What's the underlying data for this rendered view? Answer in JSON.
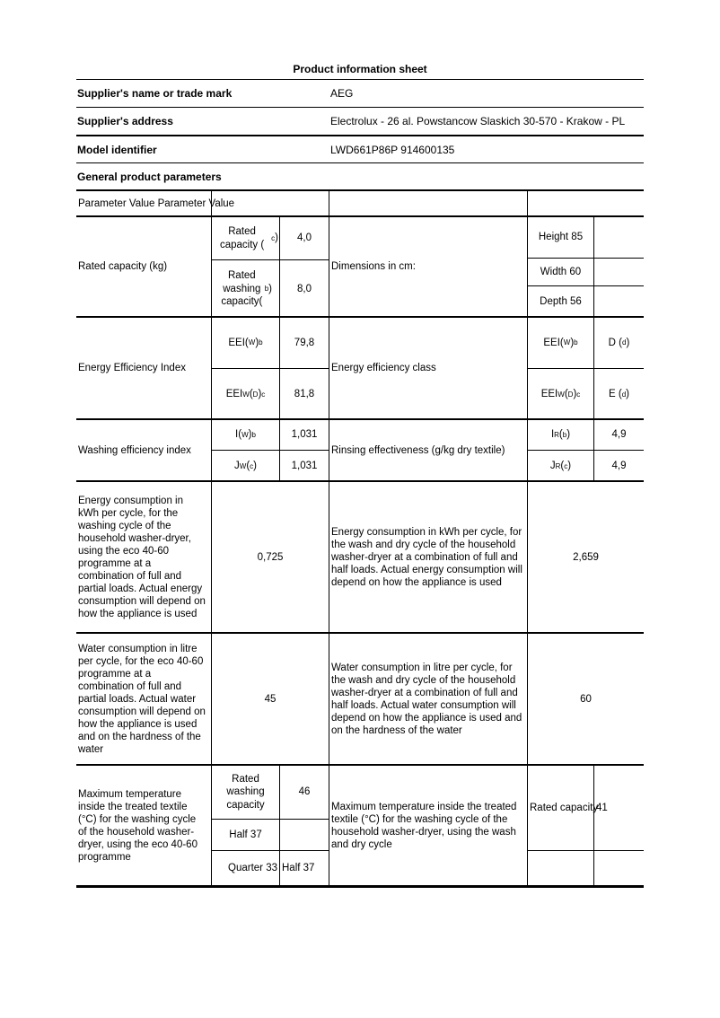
{
  "page": {
    "title": "Product information sheet",
    "info_rows": [
      {
        "label": "Supplier's name or trade mark",
        "value": "AEG"
      },
      {
        "label": "Supplier's address",
        "value": "Electrolux - 26 al. Powstancow Slaskich 30-570 - Krakow - PL"
      },
      {
        "label": "Model identifier",
        "value": "LWD661P86P 914600135"
      }
    ],
    "section_heading": "General product parameters",
    "table_header": "Parameter Value Parameter Value"
  },
  "table": {
    "rated_capacity": {
      "param_left": "Rated capacity (kg)",
      "sub1": [
        {
          "t": "Rated capacity ("
        },
        {
          "t": "c",
          "s": "sup"
        },
        {
          "t": ")"
        }
      ],
      "sub1_value": "4,0",
      "sub2": [
        {
          "t": "Rated washing capacity("
        },
        {
          "t": "b",
          "s": "sup"
        },
        {
          "t": ")"
        }
      ],
      "sub2_value": "8,0",
      "param_right": "Dimensions in cm:",
      "dims": [
        "Height 85",
        "Width 60",
        "Depth 56"
      ]
    },
    "eei": {
      "param_left": "Energy Efficiency Index",
      "sub1": [
        {
          "t": "EEI("
        },
        {
          "t": "W",
          "s": "sub"
        },
        {
          "t": ")"
        },
        {
          "t": "b",
          "s": "sup"
        }
      ],
      "sub1_value": "79,8",
      "sub2": [
        {
          "t": "EEI"
        },
        {
          "t": "W",
          "s": "sub"
        },
        {
          "t": "("
        },
        {
          "t": "D",
          "s": "sub"
        },
        {
          "t": ") "
        },
        {
          "t": "c",
          "s": "sup"
        }
      ],
      "sub2_value": "81,8",
      "param_right": "Energy efficiency class",
      "right1": [
        {
          "t": "EEI("
        },
        {
          "t": "W",
          "s": "sub"
        },
        {
          "t": ")"
        },
        {
          "t": "b",
          "s": "sup"
        }
      ],
      "class1": [
        {
          "t": "D ("
        },
        {
          "t": "d",
          "s": "sup"
        },
        {
          "t": ")"
        }
      ],
      "right2": [
        {
          "t": "EEI"
        },
        {
          "t": "W",
          "s": "sub"
        },
        {
          "t": "("
        },
        {
          "t": "D",
          "s": "sub"
        },
        {
          "t": ") "
        },
        {
          "t": "c",
          "s": "sup"
        }
      ],
      "class2": [
        {
          "t": "E ("
        },
        {
          "t": "d",
          "s": "sup"
        },
        {
          "t": ")"
        }
      ]
    },
    "washing": {
      "param_left": "Washing efficiency index",
      "sub1": [
        {
          "t": "I("
        },
        {
          "t": "W",
          "s": "sub"
        },
        {
          "t": ")"
        },
        {
          "t": "b",
          "s": "sup"
        }
      ],
      "sub1_value": "1,031",
      "sub2": [
        {
          "t": "J"
        },
        {
          "t": "W",
          "s": "sub"
        },
        {
          "t": "("
        },
        {
          "t": "c",
          "s": "sup"
        },
        {
          "t": ")"
        }
      ],
      "sub2_value": "1,031",
      "param_right": "Rinsing effectiveness (g/kg dry textile)",
      "right1": [
        {
          "t": "I"
        },
        {
          "t": "R",
          "s": "sub"
        },
        {
          "t": "("
        },
        {
          "t": "b",
          "s": "sup"
        },
        {
          "t": ")"
        }
      ],
      "right1_value": "4,9",
      "right2": [
        {
          "t": "J"
        },
        {
          "t": "R",
          "s": "sub"
        },
        {
          "t": "("
        },
        {
          "t": "c",
          "s": "sup"
        },
        {
          "t": ")"
        }
      ],
      "right2_value": "4,9"
    },
    "energy": {
      "param_left": "Energy consumption in kWh per cycle, for the washing cycle of the household washer-dryer, using the eco 40-60 programme at a combination of full and partial loads. Actual energy consumption will depend on how the appliance is used",
      "left_value": "0,725",
      "param_right": "Energy consumption in kWh per cycle, for the wash and dry cycle of the household washer-dryer at a combination of full and half loads. Actual energy consumption will depend on how the appliance is used",
      "right_value": "2,659"
    },
    "water": {
      "param_left": "Water consumption in litre per cycle, for the eco 40-60 programme at a combination of full and partial loads. Actual water consumption will depend on how the appliance is used and on the hardness of the water",
      "left_value": "45",
      "param_right": "Water consumption in litre per cycle, for the wash and dry cycle of the household washer-dryer at a combination of full and half loads. Actual water consumption will depend on how the appliance is used and on the hardness of the water",
      "right_value": "60"
    },
    "max_temp": {
      "param_left": "Maximum temperature inside the treated textile (°C) for the washing cycle of the household washer- dryer, using the eco 40-60 programme",
      "left_rows": [
        {
          "label": "Rated washing capacity",
          "value": "46"
        },
        {
          "label": "Half 37",
          "value": ""
        },
        {
          "label": "Quarter 33",
          "value": "Half 37"
        }
      ],
      "param_right": "Maximum temperature inside the treated textile (°C) for the washing cycle of the household washer-dryer, using the wash and dry cycle",
      "right_label": "Rated capacity",
      "right_value": "41"
    }
  }
}
